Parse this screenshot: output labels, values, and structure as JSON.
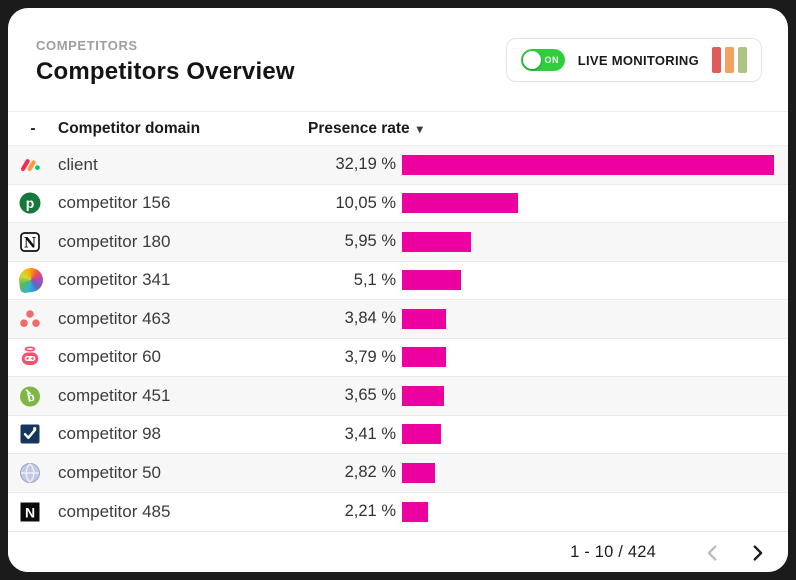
{
  "card": {
    "eyebrow": "COMPETITORS",
    "title": "Competitors Overview",
    "live_monitoring": {
      "toggle_state": "ON",
      "label": "LIVE MONITORING",
      "bar_colors": [
        "#E05B5B",
        "#F2A25C",
        "#ABC57E"
      ]
    },
    "table": {
      "columns": {
        "icon": "-",
        "domain": "Competitor domain",
        "rate": "Presence rate"
      },
      "sort_indicator": "▾",
      "max_rate": 32.19,
      "rows": [
        {
          "icon": "monday-logo",
          "domain": "client",
          "rate_label": "32,19 %",
          "rate_value": 32.19
        },
        {
          "icon": "pipedrive-p",
          "domain": "competitor 156",
          "rate_label": "10,05 %",
          "rate_value": 10.05
        },
        {
          "icon": "notion-n",
          "domain": "competitor 180",
          "rate_label": "5,95 %",
          "rate_value": 5.95
        },
        {
          "icon": "color-leaf",
          "domain": "competitor 341",
          "rate_label": "5,1 %",
          "rate_value": 5.1
        },
        {
          "icon": "asana-dots",
          "domain": "competitor 463",
          "rate_label": "3,84 %",
          "rate_value": 3.84
        },
        {
          "icon": "robot-halo",
          "domain": "competitor 60",
          "rate_label": "3,79 %",
          "rate_value": 3.79
        },
        {
          "icon": "sprout-b",
          "domain": "competitor 451",
          "rate_label": "3,65 %",
          "rate_value": 3.65
        },
        {
          "icon": "navy-checkbox",
          "domain": "competitor 98",
          "rate_label": "3,41 %",
          "rate_value": 3.41
        },
        {
          "icon": "globe",
          "domain": "competitor 50",
          "rate_label": "2,82 %",
          "rate_value": 2.82
        },
        {
          "icon": "black-n",
          "domain": "competitor 485",
          "rate_label": "2,21 %",
          "rate_value": 2.21
        }
      ]
    },
    "pagination": {
      "range_label": "1 - 10 / 424",
      "prev_enabled": false,
      "next_enabled": true
    }
  },
  "colors": {
    "bar": "#EC00A0",
    "toggle_on": "#30CE3E"
  },
  "chart_data": {
    "type": "bar",
    "title": "Competitors Overview",
    "categories": [
      "client",
      "competitor 156",
      "competitor 180",
      "competitor 341",
      "competitor 463",
      "competitor 60",
      "competitor 451",
      "competitor 98",
      "competitor 50",
      "competitor 485"
    ],
    "values": [
      32.19,
      10.05,
      5.95,
      5.1,
      3.84,
      3.79,
      3.65,
      3.41,
      2.82,
      2.21
    ],
    "xlabel": "Presence rate",
    "ylabel": "Competitor domain",
    "xlim": [
      0,
      32.19
    ],
    "legend_position": "none",
    "grid": false
  }
}
